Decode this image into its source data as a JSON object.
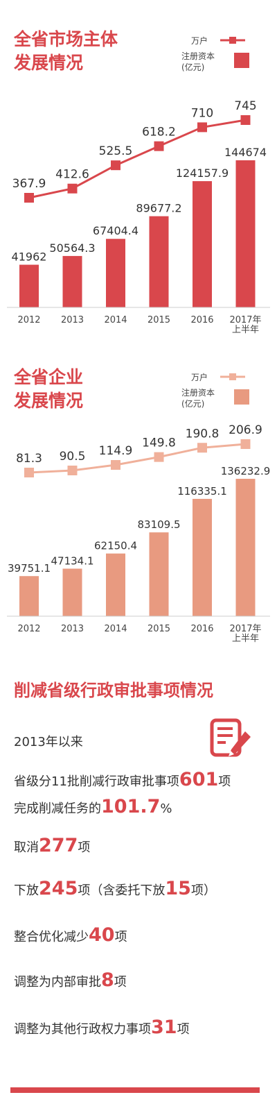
{
  "market": {
    "title_line1": "全省市场主体",
    "title_line2": "发展情况",
    "legend": {
      "line_label": "万户",
      "bar_label": "注册资本",
      "bar_unit": "(亿元)"
    },
    "colors": {
      "line": "#d9474c",
      "bar": "#d9474c"
    }
  },
  "enterprise": {
    "title_line1": "全省企业",
    "title_line2": "发展情况",
    "legend": {
      "line_label": "万户",
      "bar_label": "注册资本",
      "bar_unit": "(亿元)"
    },
    "colors": {
      "line": "#f0b09a",
      "bar": "#e89a80"
    }
  },
  "chart_data": [
    {
      "type": "bar+line",
      "title": "全省市场主体发展情况",
      "categories": [
        "2012",
        "2013",
        "2014",
        "2015",
        "2016",
        "2017年\n上半年"
      ],
      "series": [
        {
          "name": "注册资本(亿元)",
          "type": "bar",
          "values": [
            41962,
            50564.3,
            67404.4,
            89677.2,
            124157.9,
            144674
          ],
          "labels": [
            "41962",
            "50564.3",
            "67404.4",
            "89677.2",
            "124157.9",
            "144674"
          ]
        },
        {
          "name": "万户",
          "type": "line",
          "values": [
            367.9,
            412.6,
            525.5,
            618.2,
            710,
            745
          ],
          "labels": [
            "367.9",
            "412.6",
            "525.5",
            "618.2",
            "710",
            "745"
          ]
        }
      ]
    },
    {
      "type": "bar+line",
      "title": "全省企业发展情况",
      "categories": [
        "2012",
        "2013",
        "2014",
        "2015",
        "2016",
        "2017年\n上半年"
      ],
      "series": [
        {
          "name": "注册资本(亿元)",
          "type": "bar",
          "values": [
            39751.1,
            47134.1,
            62150.4,
            83109.5,
            116335.1,
            136232.9
          ],
          "labels": [
            "39751.1",
            "47134.1",
            "62150.4",
            "83109.5",
            "116335.1",
            "136232.9"
          ]
        },
        {
          "name": "万户",
          "type": "line",
          "values": [
            81.3,
            90.5,
            114.9,
            149.8,
            190.8,
            206.9
          ],
          "labels": [
            "81.3",
            "90.5",
            "114.9",
            "149.8",
            "190.8",
            "206.9"
          ]
        }
      ]
    }
  ],
  "reduction": {
    "title": "削减省级行政审批事项情况",
    "icon": "document-pen-icon",
    "since": "2013年以来",
    "l1_pre": "省级分11批削减行政审批事项",
    "l1_num": "601",
    "l1_post": "项",
    "l2_pre": "完成削减任务的",
    "l2_num": "101.7",
    "l2_post": "%",
    "l3_pre": "取消",
    "l3_num": "277",
    "l3_post": "项",
    "l4_pre": "下放",
    "l4_num": "245",
    "l4_mid": "项（含委托下放",
    "l4_num2": "15",
    "l4_post": "项）",
    "l5_pre": "整合优化减少",
    "l5_num": "40",
    "l5_post": "项",
    "l6_pre": "调整为内部审批",
    "l6_num": "8",
    "l6_post": "项",
    "l7_pre": "调整为其他行政权力事项",
    "l7_num": "31",
    "l7_post": "项"
  }
}
